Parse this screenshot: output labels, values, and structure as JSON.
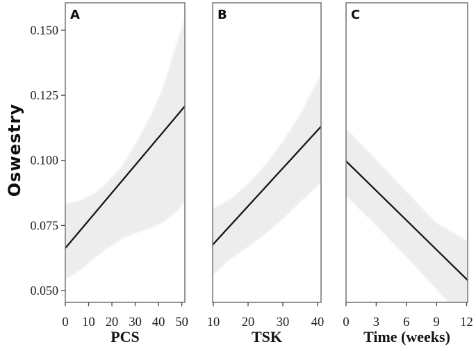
{
  "figure": {
    "ylabel": "Oswestry",
    "background": "#ffffff",
    "colors": {
      "line": "#161616",
      "band": "#ededed",
      "border": "#7b7b7b",
      "tick": "#4f4f4f",
      "text": "#1c1c1c"
    }
  },
  "chart_data": [
    {
      "type": "line",
      "panel": "A",
      "xlabel": "PCS",
      "ylabel": "Oswestry",
      "xlim": [
        0,
        51.3
      ],
      "ylim": [
        0.0455,
        0.1605
      ],
      "x_ticks": [
        0,
        10,
        20,
        30,
        40,
        50
      ],
      "y_ticks": [
        "0.050",
        "0.075",
        "0.100",
        "0.125",
        "0.150"
      ],
      "regression_line": {
        "x": [
          0,
          51.3
        ],
        "y": [
          0.0663,
          0.1208
        ]
      },
      "confidence_band": {
        "x": [
          0,
          6,
          12,
          18,
          24,
          30,
          36,
          42,
          48,
          51.3
        ],
        "upper": [
          0.0835,
          0.0845,
          0.087,
          0.0915,
          0.0975,
          0.106,
          0.116,
          0.128,
          0.1455,
          0.1545
        ],
        "lower": [
          0.0543,
          0.0577,
          0.0622,
          0.0662,
          0.0697,
          0.0721,
          0.0737,
          0.0762,
          0.0805,
          0.084
        ]
      }
    },
    {
      "type": "line",
      "panel": "B",
      "xlabel": "TSK",
      "ylabel": "Oswestry",
      "xlim": [
        9.8,
        41.0
      ],
      "ylim": [
        0.0455,
        0.1605
      ],
      "x_ticks": [
        10,
        20,
        30,
        40
      ],
      "y_ticks": [],
      "regression_line": {
        "x": [
          9.8,
          41.0
        ],
        "y": [
          0.0676,
          0.113
        ]
      },
      "confidence_band": {
        "x": [
          9.8,
          15,
          20,
          25,
          30,
          35,
          41.0
        ],
        "upper": [
          0.0815,
          0.0852,
          0.091,
          0.0983,
          0.1072,
          0.1178,
          0.133
        ],
        "lower": [
          0.056,
          0.0622,
          0.0668,
          0.0718,
          0.0775,
          0.084,
          0.0915
        ]
      }
    },
    {
      "type": "line",
      "panel": "C",
      "xlabel": "Time (weeks)",
      "ylabel": "Oswestry",
      "xlim": [
        0,
        12.1
      ],
      "ylim": [
        0.0455,
        0.1605
      ],
      "x_ticks": [
        0,
        3,
        6,
        9,
        12
      ],
      "y_ticks": [],
      "regression_line": {
        "x": [
          0,
          12.1
        ],
        "y": [
          0.0997,
          0.054
        ]
      },
      "confidence_band": {
        "x": [
          0,
          3,
          6,
          9,
          12.1
        ],
        "upper": [
          0.1122,
          0.1003,
          0.088,
          0.076,
          0.069
        ],
        "lower": [
          0.0864,
          0.075,
          0.063,
          0.0505,
          0.0375
        ]
      }
    }
  ]
}
